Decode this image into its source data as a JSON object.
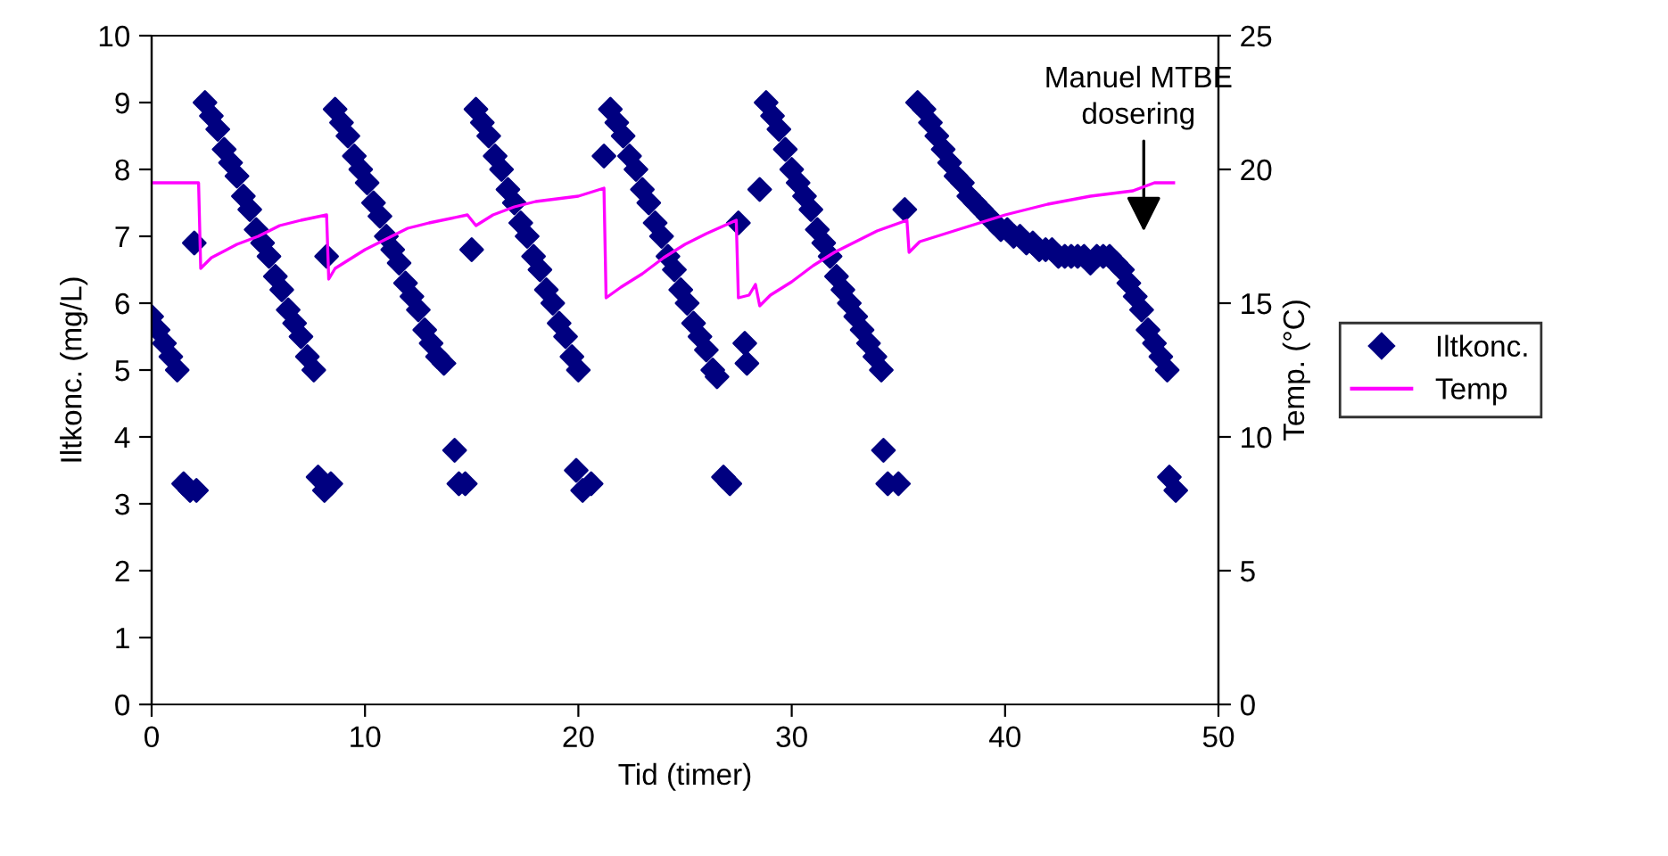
{
  "chart_data": {
    "type": "scatter",
    "xlabel": "Tid (timer)",
    "ylabel": "Iltkonc. (mg/L)",
    "y2label": "Temp. (°C)",
    "xlim": [
      0,
      50
    ],
    "xticks": [
      0,
      10,
      20,
      30,
      40,
      50
    ],
    "ylim": [
      0,
      10
    ],
    "yticks": [
      0,
      1,
      2,
      3,
      4,
      5,
      6,
      7,
      8,
      9,
      10
    ],
    "y2lim": [
      0,
      25
    ],
    "y2ticks": [
      0,
      5,
      10,
      15,
      20,
      25
    ],
    "grid": false,
    "legend": "right",
    "annotations": [
      "Manuel MTBE\ndosering"
    ],
    "series": [
      {
        "name": "Iltkonc.",
        "type": "scatter",
        "marker": "diamond",
        "color": "#000080",
        "x": [
          0,
          0.3,
          0.6,
          0.9,
          1.2,
          1.5,
          1.8,
          2.0,
          2.1,
          2.5,
          2.8,
          3.1,
          3.4,
          3.7,
          4.0,
          4.3,
          4.6,
          4.9,
          5.2,
          5.5,
          5.8,
          6.1,
          6.4,
          6.7,
          7.0,
          7.3,
          7.6,
          7.8,
          8.1,
          8.2,
          8.4,
          8.6,
          8.9,
          9.2,
          9.5,
          9.8,
          10.1,
          10.4,
          10.7,
          11.0,
          11.3,
          11.6,
          11.9,
          12.2,
          12.5,
          12.8,
          13.1,
          13.4,
          13.7,
          14.2,
          14.4,
          14.7,
          15.0,
          15.2,
          15.5,
          15.8,
          16.1,
          16.4,
          16.7,
          17.0,
          17.3,
          17.6,
          17.9,
          18.2,
          18.5,
          18.8,
          19.1,
          19.4,
          19.7,
          19.9,
          20.0,
          20.2,
          20.6,
          21.2,
          21.5,
          21.8,
          22.1,
          22.4,
          22.7,
          23.0,
          23.3,
          23.6,
          23.9,
          24.2,
          24.5,
          24.8,
          25.1,
          25.4,
          25.7,
          26.0,
          26.3,
          26.5,
          26.8,
          27.1,
          27.5,
          27.8,
          27.9,
          28.5,
          28.8,
          29.1,
          29.4,
          29.7,
          30.0,
          30.3,
          30.6,
          30.9,
          31.2,
          31.5,
          31.8,
          32.1,
          32.4,
          32.7,
          33.0,
          33.3,
          33.6,
          33.9,
          34.2,
          34.3,
          34.5,
          35.0,
          35.3,
          35.9,
          36.2,
          36.5,
          36.8,
          37.1,
          37.4,
          37.7,
          38.0,
          38.3,
          38.6,
          38.9,
          39.2,
          39.5,
          39.8,
          40.1,
          40.4,
          40.7,
          41.0,
          41.3,
          41.6,
          41.9,
          42.2,
          42.5,
          42.8,
          43.1,
          43.4,
          43.7,
          44.0,
          44.3,
          44.6,
          44.9,
          45.2,
          45.5,
          45.8,
          46.1,
          46.4,
          46.7,
          47.0,
          47.3,
          47.6,
          47.7,
          48.0
        ],
        "values": [
          5.8,
          5.6,
          5.4,
          5.2,
          5.0,
          3.3,
          3.2,
          6.9,
          3.2,
          9.0,
          8.8,
          8.6,
          8.3,
          8.1,
          7.9,
          7.6,
          7.4,
          7.1,
          6.9,
          6.7,
          6.4,
          6.2,
          5.9,
          5.7,
          5.5,
          5.2,
          5.0,
          3.4,
          3.2,
          6.7,
          3.3,
          8.9,
          8.7,
          8.5,
          8.2,
          8.0,
          7.8,
          7.5,
          7.3,
          7.0,
          6.8,
          6.6,
          6.3,
          6.1,
          5.9,
          5.6,
          5.4,
          5.2,
          5.1,
          3.8,
          3.3,
          3.3,
          6.8,
          8.9,
          8.7,
          8.5,
          8.2,
          8.0,
          7.7,
          7.5,
          7.2,
          7.0,
          6.7,
          6.5,
          6.2,
          6.0,
          5.7,
          5.5,
          5.2,
          3.5,
          5.0,
          3.2,
          3.3,
          8.2,
          8.9,
          8.7,
          8.5,
          8.2,
          8.0,
          7.7,
          7.5,
          7.2,
          7.0,
          6.7,
          6.5,
          6.2,
          6.0,
          5.7,
          5.5,
          5.3,
          5.0,
          4.9,
          3.4,
          3.3,
          7.2,
          5.4,
          5.1,
          7.7,
          9.0,
          8.8,
          8.6,
          8.3,
          8.0,
          7.8,
          7.6,
          7.4,
          7.1,
          6.9,
          6.7,
          6.4,
          6.2,
          6.0,
          5.8,
          5.6,
          5.4,
          5.2,
          5.0,
          3.8,
          3.3,
          3.3,
          7.4,
          9.0,
          8.9,
          8.7,
          8.5,
          8.3,
          8.1,
          7.9,
          7.8,
          7.6,
          7.5,
          7.4,
          7.3,
          7.2,
          7.1,
          7.1,
          7.0,
          7.0,
          6.9,
          6.9,
          6.8,
          6.8,
          6.8,
          6.7,
          6.7,
          6.7,
          6.7,
          6.7,
          6.6,
          6.7,
          6.7,
          6.7,
          6.6,
          6.5,
          6.3,
          6.1,
          5.9,
          5.6,
          5.4,
          5.2,
          5.0,
          3.4,
          3.2
        ]
      },
      {
        "name": "Temp",
        "type": "line",
        "axis": "y2",
        "marker": "none",
        "line_style": "solid",
        "color": "#ff00ff",
        "x": [
          0,
          2.2,
          2.3,
          2.8,
          4,
          5,
          6,
          7,
          8.2,
          8.3,
          8.6,
          10,
          11,
          12,
          13,
          14.8,
          15.2,
          16,
          17,
          18,
          19,
          20,
          21.2,
          21.3,
          22,
          23,
          24,
          25,
          26,
          27.4,
          27.5,
          28.0,
          28.3,
          28.5,
          29,
          30,
          31,
          32,
          33,
          34,
          35.4,
          35.5,
          36,
          38,
          40,
          42,
          44,
          46,
          47,
          47.9
        ],
        "values": [
          19.5,
          19.5,
          16.3,
          16.7,
          17.2,
          17.5,
          17.9,
          18.1,
          18.3,
          15.9,
          16.3,
          17.0,
          17.4,
          17.8,
          18.0,
          18.3,
          17.9,
          18.3,
          18.6,
          18.8,
          18.9,
          19.0,
          19.3,
          15.2,
          15.6,
          16.1,
          16.7,
          17.2,
          17.6,
          18.1,
          15.2,
          15.3,
          15.7,
          14.9,
          15.3,
          15.8,
          16.4,
          16.9,
          17.3,
          17.7,
          18.1,
          16.9,
          17.3,
          17.8,
          18.3,
          18.7,
          19.0,
          19.2,
          19.5,
          19.5
        ]
      }
    ]
  }
}
